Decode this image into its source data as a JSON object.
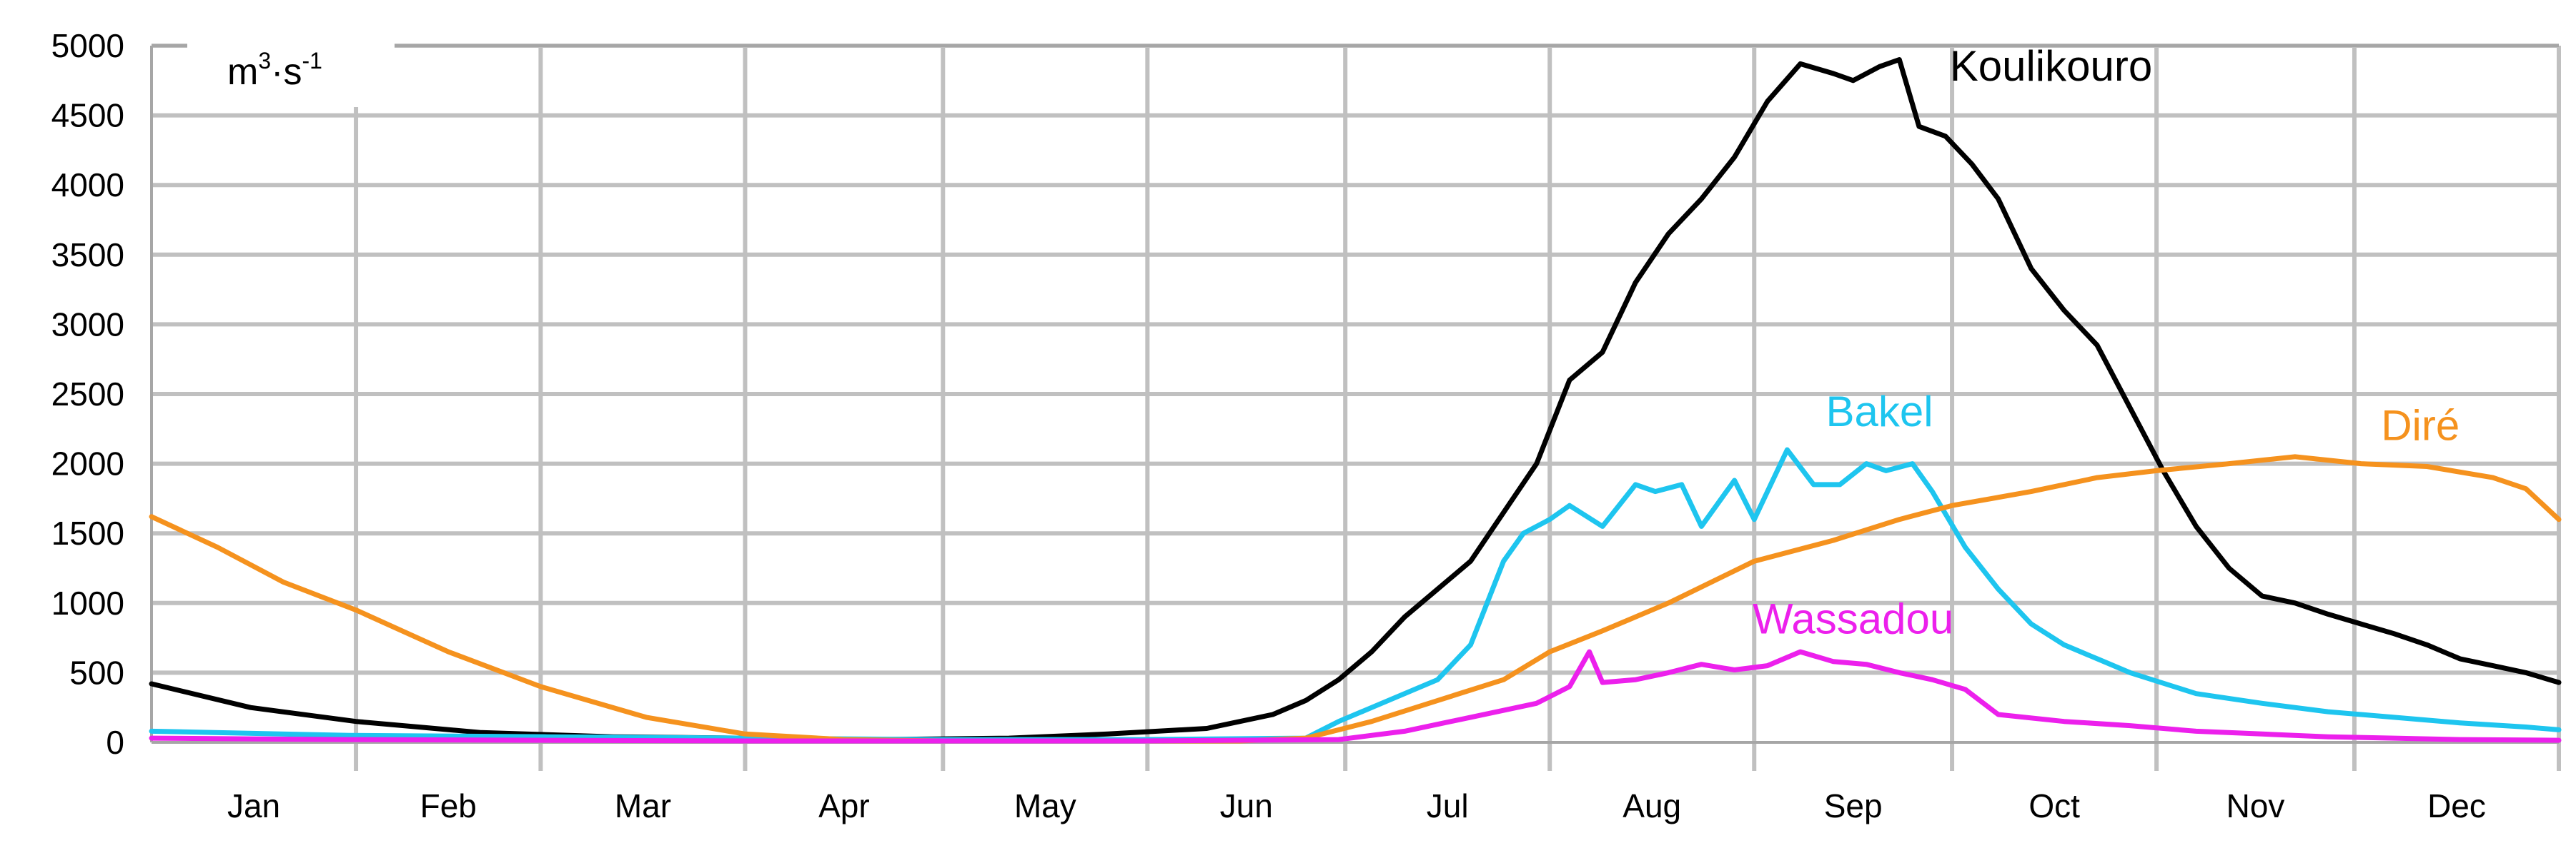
{
  "chart_data": {
    "type": "line",
    "unit": {
      "base_m": "m",
      "sup_3": "3",
      "dot_s": "·s",
      "sup_neg1": "-1"
    },
    "ylim": [
      0,
      5000
    ],
    "yticks": [
      0,
      500,
      1000,
      1500,
      2000,
      2500,
      3000,
      3500,
      4000,
      4500,
      5000
    ],
    "xlim": [
      0,
      365
    ],
    "months": [
      {
        "label": "Jan",
        "start": 0
      },
      {
        "label": "Feb",
        "start": 31
      },
      {
        "label": "Mar",
        "start": 59
      },
      {
        "label": "Apr",
        "start": 90
      },
      {
        "label": "May",
        "start": 120
      },
      {
        "label": "Jun",
        "start": 151
      },
      {
        "label": "Jul",
        "start": 181
      },
      {
        "label": "Aug",
        "start": 212
      },
      {
        "label": "Sep",
        "start": 243
      },
      {
        "label": "Oct",
        "start": 273
      },
      {
        "label": "Nov",
        "start": 304
      },
      {
        "label": "Dec",
        "start": 334
      }
    ],
    "grid": true,
    "series": [
      {
        "name": "Koulikouro",
        "color": "#000000",
        "x": [
          0,
          15,
          31,
          50,
          70,
          90,
          110,
          130,
          145,
          160,
          170,
          175,
          180,
          185,
          190,
          195,
          200,
          205,
          210,
          215,
          220,
          225,
          230,
          235,
          240,
          245,
          250,
          255,
          258,
          262,
          265,
          268,
          272,
          276,
          280,
          285,
          290,
          295,
          300,
          305,
          310,
          315,
          320,
          325,
          330,
          335,
          340,
          345,
          350,
          355,
          360,
          365
        ],
        "y": [
          420,
          250,
          150,
          70,
          40,
          30,
          20,
          30,
          60,
          100,
          200,
          300,
          450,
          650,
          900,
          1100,
          1300,
          1650,
          2000,
          2600,
          2800,
          3300,
          3650,
          3900,
          4200,
          4600,
          4870,
          4800,
          4750,
          4850,
          4900,
          4420,
          4350,
          4150,
          3900,
          3400,
          3100,
          2850,
          2400,
          1950,
          1550,
          1250,
          1050,
          1000,
          920,
          850,
          780,
          700,
          600,
          550,
          500,
          430
        ]
      },
      {
        "name": "Bakel",
        "color": "#1ec5ef",
        "x": [
          0,
          30,
          60,
          90,
          120,
          150,
          175,
          180,
          185,
          190,
          195,
          200,
          205,
          208,
          212,
          215,
          220,
          225,
          228,
          232,
          235,
          240,
          243,
          248,
          252,
          256,
          260,
          263,
          267,
          270,
          275,
          280,
          285,
          290,
          295,
          300,
          310,
          320,
          330,
          340,
          350,
          360,
          365
        ],
        "y": [
          80,
          50,
          40,
          30,
          20,
          20,
          30,
          150,
          250,
          350,
          450,
          700,
          1300,
          1500,
          1600,
          1700,
          1550,
          1850,
          1800,
          1850,
          1550,
          1880,
          1600,
          2100,
          1850,
          1850,
          2000,
          1950,
          2000,
          1800,
          1400,
          1100,
          850,
          700,
          600,
          500,
          350,
          280,
          220,
          180,
          140,
          110,
          90
        ]
      },
      {
        "name": "Diré",
        "color": "#f5921e",
        "x": [
          0,
          10,
          20,
          31,
          45,
          59,
          75,
          90,
          105,
          120,
          135,
          150,
          165,
          175,
          185,
          195,
          205,
          212,
          220,
          230,
          243,
          255,
          265,
          273,
          285,
          295,
          304,
          315,
          325,
          335,
          345,
          355,
          360,
          365
        ],
        "y": [
          1620,
          1400,
          1150,
          950,
          650,
          400,
          180,
          60,
          20,
          10,
          10,
          10,
          10,
          30,
          150,
          300,
          450,
          650,
          800,
          1000,
          1300,
          1450,
          1600,
          1700,
          1800,
          1900,
          1950,
          2000,
          2050,
          2000,
          1980,
          1900,
          1820,
          1600
        ]
      },
      {
        "name": "Wassadou",
        "color": "#ec20ec",
        "x": [
          0,
          30,
          60,
          90,
          120,
          150,
          180,
          190,
          200,
          210,
          215,
          218,
          220,
          225,
          230,
          235,
          240,
          245,
          250,
          255,
          260,
          265,
          270,
          275,
          280,
          290,
          300,
          310,
          320,
          330,
          340,
          350,
          365
        ],
        "y": [
          30,
          20,
          15,
          10,
          10,
          10,
          20,
          80,
          180,
          280,
          400,
          650,
          430,
          450,
          500,
          560,
          520,
          550,
          650,
          580,
          560,
          500,
          450,
          380,
          200,
          150,
          120,
          80,
          60,
          40,
          30,
          20,
          15
        ]
      }
    ],
    "annotations": [
      {
        "series": "Koulikouro",
        "text": "Koulikouro",
        "x": 288,
        "y": 4750
      },
      {
        "series": "Bakel",
        "text": "Bakel",
        "x": 262,
        "y": 2270
      },
      {
        "series": "Diré",
        "text": "Diré",
        "x": 344,
        "y": 2170
      },
      {
        "series": "Wassadou",
        "text": "Wassadou",
        "x": 258,
        "y": 780
      }
    ]
  }
}
